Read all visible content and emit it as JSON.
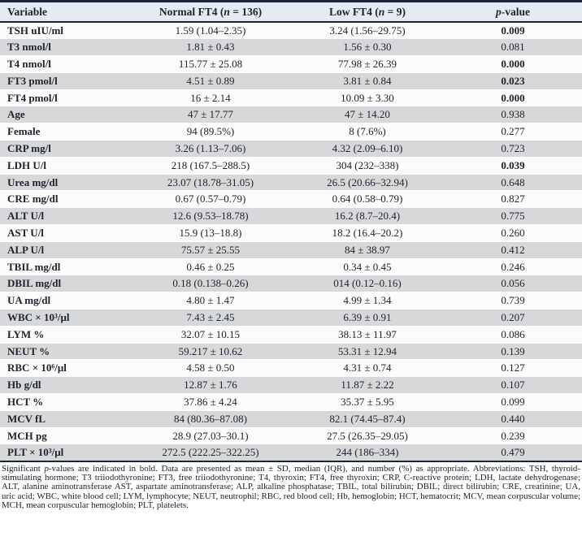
{
  "colors": {
    "border_dark": "#1c2638",
    "header_bg": "#e5ebf3",
    "row_light_bg": "#fcfcfc",
    "row_gray_bg": "#d7d8da",
    "text": "#20242e"
  },
  "table": {
    "columns": {
      "variable": "Variable",
      "normal_ft4": {
        "pre": "Normal FT4 (",
        "italic": "n",
        "post": " = 136)"
      },
      "low_ft4": {
        "pre": "Low FT4 (",
        "italic": "n",
        "post": " = 9)"
      },
      "p_value": {
        "italic": "p",
        "post": "-value"
      }
    },
    "rows": [
      {
        "variable": "TSH uIU/ml",
        "normal": "1.59 (1.04–2.35)",
        "low": "3.24 (1.56–29.75)",
        "p": "0.009",
        "p_bold": true
      },
      {
        "variable": "T3 nmol/l",
        "normal": "1.81 ± 0.43",
        "low": "1.56 ± 0.30",
        "p": "0.081",
        "p_bold": false
      },
      {
        "variable": "T4 nmol/l",
        "normal": "115.77 ± 25.08",
        "low": "77.98 ± 26.39",
        "p": "0.000",
        "p_bold": true
      },
      {
        "variable": "FT3 pmol/l",
        "normal": "4.51 ± 0.89",
        "low": "3.81 ± 0.84",
        "p": "0.023",
        "p_bold": true
      },
      {
        "variable": "FT4 pmol/l",
        "normal": "16 ± 2.14",
        "low": "10.09 ± 3.30",
        "p": "0.000",
        "p_bold": true
      },
      {
        "variable": "Age",
        "normal": "47 ± 17.77",
        "low": "47 ± 14.20",
        "p": "0.938",
        "p_bold": false
      },
      {
        "variable": "Female",
        "normal": "94 (89.5%)",
        "low": "8 (7.6%)",
        "p": "0.277",
        "p_bold": false
      },
      {
        "variable": "CRP mg/l",
        "normal": "3.26 (1.13–7.06)",
        "low": "4.32 (2.09–6.10)",
        "p": "0.723",
        "p_bold": false
      },
      {
        "variable": "LDH U/l",
        "normal": "218 (167.5–288.5)",
        "low": "304 (232–338)",
        "p": "0.039",
        "p_bold": true
      },
      {
        "variable": "Urea mg/dl",
        "normal": "23.07 (18.78–31.05)",
        "low": "26.5 (20.66–32.94)",
        "p": "0.648",
        "p_bold": false
      },
      {
        "variable": "CRE mg/dl",
        "normal": "0.67 (0.57–0.79)",
        "low": "0.64 (0.58–0.79)",
        "p": "0.827",
        "p_bold": false
      },
      {
        "variable": "ALT U/l",
        "normal": "12.6 (9.53–18.78)",
        "low": "16.2 (8.7–20.4)",
        "p": "0.775",
        "p_bold": false
      },
      {
        "variable": "AST U/l",
        "normal": "15.9 (13–18.8)",
        "low": "18.2 (16.4–20.2)",
        "p": "0.260",
        "p_bold": false
      },
      {
        "variable": "ALP U/l",
        "normal": "75.57 ± 25.55",
        "low": "84 ± 38.97",
        "p": "0.412",
        "p_bold": false
      },
      {
        "variable": "TBIL mg/dl",
        "normal": "0.46 ± 0.25",
        "low": "0.34 ± 0.45",
        "p": "0.246",
        "p_bold": false
      },
      {
        "variable": "DBIL mg/dl",
        "normal": "0.18 (0.138–0.26)",
        "low": "014 (0.12–0.16)",
        "p": "0.056",
        "p_bold": false
      },
      {
        "variable": "UA mg/dl",
        "normal": "4.80 ± 1.47",
        "low": "4.99 ± 1.34",
        "p": "0.739",
        "p_bold": false
      },
      {
        "variable": "WBC × 10³/μl",
        "normal": "7.43 ± 2.45",
        "low": "6.39 ± 0.91",
        "p": "0.207",
        "p_bold": false
      },
      {
        "variable": "LYM %",
        "normal": "32.07 ± 10.15",
        "low": "38.13 ± 11.97",
        "p": "0.086",
        "p_bold": false
      },
      {
        "variable": "NEUT %",
        "normal": "59.217 ± 10.62",
        "low": "53.31 ± 12.94",
        "p": "0.139",
        "p_bold": false
      },
      {
        "variable": "RBC × 10⁶/μl",
        "normal": "4.58 ± 0.50",
        "low": "4.31 ± 0.74",
        "p": "0.127",
        "p_bold": false
      },
      {
        "variable": "Hb g/dl",
        "normal": "12.87 ± 1.76",
        "low": "11.87 ± 2.22",
        "p": "0.107",
        "p_bold": false
      },
      {
        "variable": "HCT %",
        "normal": "37.86 ± 4.24",
        "low": "35.37 ± 5.95",
        "p": "0.099",
        "p_bold": false
      },
      {
        "variable": "MCV fL",
        "normal": "84 (80.36–87.08)",
        "low": "82.1 (74.45–87.4)",
        "p": "0.440",
        "p_bold": false
      },
      {
        "variable": "MCH pg",
        "normal": "28.9 (27.03–30.1)",
        "low": "27.5 (26.35–29.05)",
        "p": "0.239",
        "p_bold": false
      },
      {
        "variable": "PLT × 10³/μl",
        "normal": "272.5 (222.25–322.25)",
        "low": "244 (186–334)",
        "p": "0.479",
        "p_bold": false
      }
    ]
  },
  "footnote": {
    "seg1": "Significant ",
    "italic": "p",
    "seg2": "-values are indicated in bold. Data are presented as mean ± SD, median (IQR), and number (%) as appropriate. Abbreviations: TSH, thyroid-stimulating hormone; T3 triiodothyronine; FT3, free triiodothyronine; T4, thyroxin; FT4, free thyroxin; CRP, C-reactive protein; LDH, lactate dehydrogenase; ALT, alanine aminotransferase AST, aspartate aminotransferase; ALP, alkaline phosphatase; TBIL, total bilirubin; DBIL; direct bilirubin; CRE, creatinine; UA, uric acid; WBC, white blood cell; LYM, lymphocyte; NEUT, neutrophil; RBC, red blood cell; Hb, hemoglobin; HCT, hematocrit; MCV, mean corpuscular volume; MCH, mean corpuscular hemoglobin; PLT, platelets."
  }
}
